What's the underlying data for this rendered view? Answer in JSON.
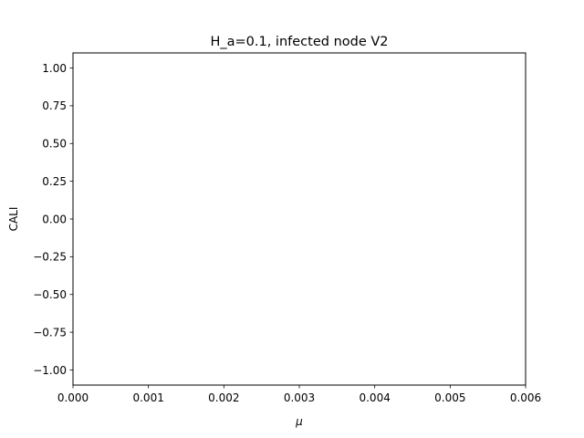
{
  "chart_data": {
    "type": "line",
    "title": "H_a=0.1, infected node V2",
    "xlabel": "μ",
    "ylabel": "CALI",
    "xlim": [
      0,
      0.006
    ],
    "ylim": [
      -1.1,
      1.1
    ],
    "x_ticks": [
      0,
      0.001,
      0.002,
      0.003,
      0.004,
      0.005,
      0.006
    ],
    "x_tick_labels": [
      "0.000",
      "0.001",
      "0.002",
      "0.003",
      "0.004",
      "0.005",
      "0.006"
    ],
    "y_ticks": [
      1,
      0.75,
      0.5,
      0.25,
      0,
      -0.25,
      -0.5,
      -0.75,
      -1
    ],
    "y_tick_labels": [
      "1.00",
      "0.75",
      "0.50",
      "0.25",
      "0.00",
      "−0.25",
      "−0.50",
      "−0.75",
      "−1.00"
    ],
    "grid": false,
    "series": []
  }
}
